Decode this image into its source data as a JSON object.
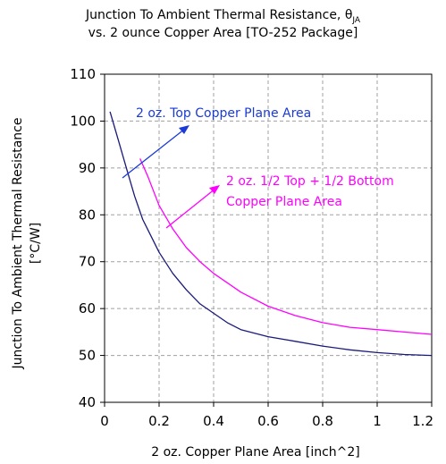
{
  "chart_data": {
    "type": "line",
    "title_line1_main": "Junction To Ambient Thermal Resistance, θ",
    "title_line1_sub": "JA",
    "title_line2": "vs. 2 ounce Copper Area [TO-252  Package]",
    "xlabel": "2 oz. Copper Plane Area [inch^2]",
    "ylabel_line1": "Junction To Ambient Thermal Resistance",
    "ylabel_line2": "[°C/W]",
    "xlim": [
      0,
      1.2
    ],
    "ylim": [
      40,
      110
    ],
    "x_ticks": [
      "0",
      "0.2",
      "0.4",
      "0.6",
      "0.8",
      "1",
      "1.2"
    ],
    "y_ticks": [
      "40",
      "50",
      "60",
      "70",
      "80",
      "90",
      "100",
      "110"
    ],
    "grid": true,
    "series": [
      {
        "name": "2 oz. Top Copper Plane Area",
        "color": "#1a1a7a",
        "x": [
          0.02,
          0.05,
          0.08,
          0.11,
          0.14,
          0.17,
          0.2,
          0.25,
          0.3,
          0.35,
          0.4,
          0.45,
          0.5,
          0.6,
          0.7,
          0.8,
          0.9,
          1.0,
          1.1,
          1.2
        ],
        "y": [
          102,
          96,
          90,
          84,
          79,
          75.5,
          72,
          67.5,
          64,
          61,
          59,
          57,
          55.5,
          54,
          53,
          52,
          51.2,
          50.6,
          50.2,
          50
        ]
      },
      {
        "name_line1": "2 oz. 1/2 Top  + 1/2 Bottom",
        "name_line2": "Copper Plane Area",
        "color": "#ff00ff",
        "x": [
          0.13,
          0.16,
          0.2,
          0.25,
          0.3,
          0.35,
          0.4,
          0.45,
          0.5,
          0.6,
          0.7,
          0.8,
          0.9,
          1.0,
          1.1,
          1.2
        ],
        "y": [
          92,
          88,
          82,
          77,
          73,
          70,
          67.5,
          65.5,
          63.5,
          60.5,
          58.5,
          57,
          56,
          55.5,
          55,
          54.5
        ]
      }
    ]
  }
}
